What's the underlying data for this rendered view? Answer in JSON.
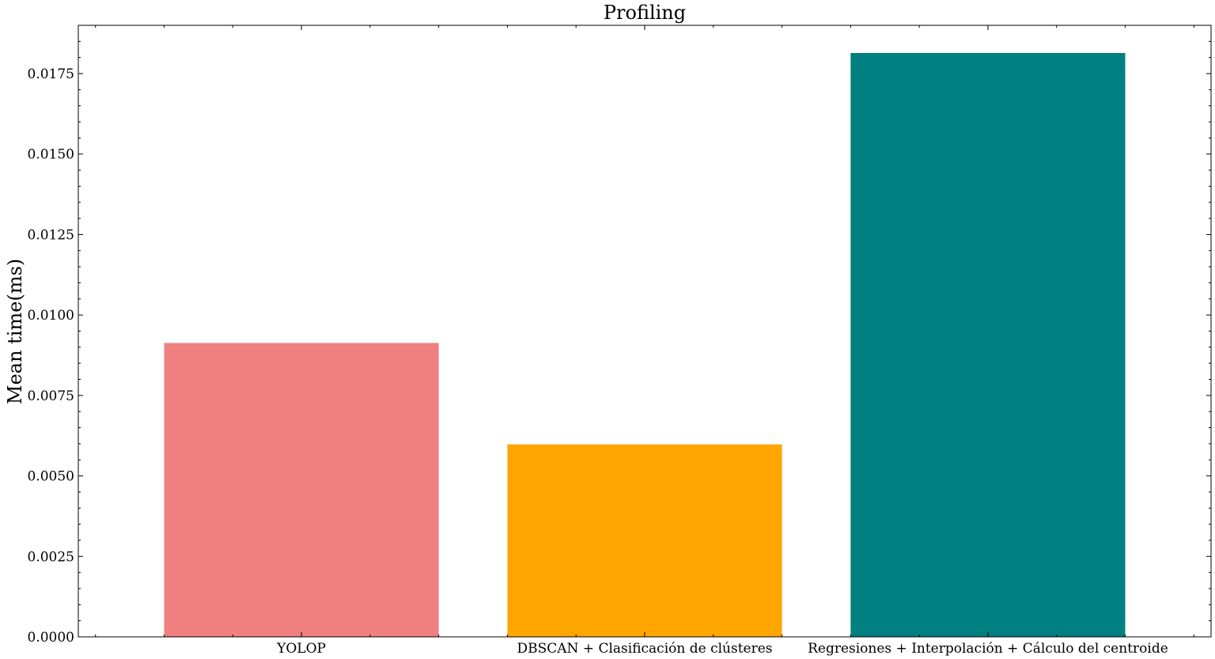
{
  "chart_data": {
    "type": "bar",
    "title": "Profiling",
    "xlabel": "",
    "ylabel": "Mean time(ms)",
    "categories": [
      "YOLOP",
      "DBSCAN + Clasificación de clústeres",
      "Regresiones + Interpolación + Cálculo del centroide"
    ],
    "values": [
      0.00913,
      0.00598,
      0.01814
    ],
    "colors": [
      "#f08080",
      "#ffa500",
      "#008080"
    ],
    "ylim": [
      0,
      0.019
    ],
    "yticks": [
      "0.0000",
      "0.0025",
      "0.0050",
      "0.0075",
      "0.0100",
      "0.0125",
      "0.0150",
      "0.0175"
    ],
    "grid": false,
    "legend": "none"
  }
}
